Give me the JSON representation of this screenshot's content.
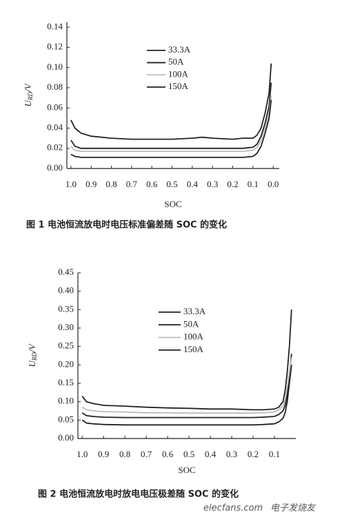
{
  "chart_data": [
    {
      "type": "line",
      "caption": "图 1   电池恒流放电时电压标准偏差随 SOC 的变化",
      "ylabel": [
        "U",
        "RD",
        "/V"
      ],
      "xlabel": "SOC",
      "xlim": [
        1.02,
        -0.03
      ],
      "ylim": [
        0,
        0.145
      ],
      "xticks": [
        {
          "value": 1,
          "label": "1.0"
        },
        0.9,
        0.8,
        0.7,
        0.6,
        0.5,
        0.4,
        0.3,
        0.2,
        0.1,
        {
          "value": 0,
          "label": "0.0"
        }
      ],
      "yticks": [
        {
          "value": 0,
          "label": "0.00"
        },
        0.02,
        0.04,
        0.06,
        0.08,
        {
          "value": 0.1,
          "label": "0.10"
        },
        0.12,
        0.14
      ],
      "x": [
        1.0,
        0.98,
        0.95,
        0.9,
        0.8,
        0.7,
        0.6,
        0.5,
        0.4,
        0.35,
        0.3,
        0.2,
        0.15,
        0.1,
        0.08,
        0.06,
        0.04,
        0.02,
        0.01
      ],
      "series": [
        {
          "name": "33.3A",
          "color": "#222222",
          "values": [
            0.048,
            0.04,
            0.035,
            0.032,
            0.03,
            0.029,
            0.029,
            0.029,
            0.03,
            0.031,
            0.03,
            0.029,
            0.03,
            0.03,
            0.033,
            0.04,
            0.055,
            0.075,
            0.104
          ]
        },
        {
          "name": "50A",
          "color": "#222222",
          "values": [
            0.028,
            0.022,
            0.02,
            0.02,
            0.02,
            0.02,
            0.02,
            0.02,
            0.02,
            0.02,
            0.02,
            0.02,
            0.02,
            0.021,
            0.024,
            0.032,
            0.045,
            0.062,
            0.085
          ]
        },
        {
          "name": "100A",
          "color": "#bbbbbb",
          "values": [
            0.022,
            0.018,
            0.017,
            0.017,
            0.017,
            0.017,
            0.017,
            0.017,
            0.017,
            0.017,
            0.017,
            0.017,
            0.017,
            0.018,
            0.021,
            0.028,
            0.04,
            0.055,
            0.072
          ]
        },
        {
          "name": "150A",
          "color": "#222222",
          "values": [
            0.014,
            0.012,
            0.011,
            0.011,
            0.011,
            0.011,
            0.011,
            0.011,
            0.011,
            0.011,
            0.011,
            0.011,
            0.011,
            0.012,
            0.015,
            0.022,
            0.035,
            0.05,
            0.068
          ]
        }
      ]
    },
    {
      "type": "line",
      "caption": "图 2   电池恒流放电时放电电压极差随 SOC 的变化",
      "ylabel": [
        "U",
        "RD",
        "/V"
      ],
      "xlabel": "SOC",
      "xlim": [
        1.02,
        0.0
      ],
      "ylim": [
        0,
        0.45
      ],
      "xticks": [
        {
          "value": 1,
          "label": "1.0"
        },
        0.9,
        0.8,
        0.7,
        0.6,
        0.5,
        0.4,
        0.3,
        0.2,
        0.1
      ],
      "yticks": [
        {
          "value": 0,
          "label": "0.00"
        },
        0.05,
        {
          "value": 0.1,
          "label": "0.10"
        },
        0.15,
        {
          "value": 0.2,
          "label": "0.20"
        },
        0.25,
        {
          "value": 0.3,
          "label": "0.30"
        },
        0.35,
        {
          "value": 0.4,
          "label": "0.40"
        },
        0.45
      ],
      "x": [
        1.0,
        0.98,
        0.95,
        0.9,
        0.8,
        0.7,
        0.6,
        0.5,
        0.4,
        0.3,
        0.2,
        0.15,
        0.1,
        0.08,
        0.06,
        0.05,
        0.04,
        0.03,
        0.02
      ],
      "series": [
        {
          "name": "33.3A",
          "color": "#222222",
          "values": [
            0.115,
            0.1,
            0.095,
            0.09,
            0.088,
            0.085,
            0.083,
            0.082,
            0.08,
            0.08,
            0.078,
            0.078,
            0.08,
            0.085,
            0.1,
            0.13,
            0.18,
            0.25,
            0.35
          ]
        },
        {
          "name": "50A",
          "color": "#222222",
          "values": [
            0.07,
            0.062,
            0.06,
            0.058,
            0.057,
            0.057,
            0.057,
            0.057,
            0.057,
            0.057,
            0.057,
            0.058,
            0.06,
            0.065,
            0.075,
            0.09,
            0.12,
            0.17,
            0.23
          ]
        },
        {
          "name": "100A",
          "color": "#bbbbbb",
          "values": [
            0.085,
            0.078,
            0.075,
            0.073,
            0.072,
            0.07,
            0.07,
            0.069,
            0.069,
            0.069,
            0.069,
            0.07,
            0.072,
            0.078,
            0.088,
            0.105,
            0.14,
            0.18,
            0.22
          ]
        },
        {
          "name": "150A",
          "color": "#222222",
          "values": [
            0.05,
            0.042,
            0.04,
            0.038,
            0.037,
            0.037,
            0.037,
            0.037,
            0.037,
            0.037,
            0.037,
            0.038,
            0.04,
            0.045,
            0.055,
            0.07,
            0.1,
            0.15,
            0.2
          ]
        }
      ]
    }
  ],
  "watermark": {
    "site": "elecfans.com",
    "name": "电子发烧友"
  }
}
